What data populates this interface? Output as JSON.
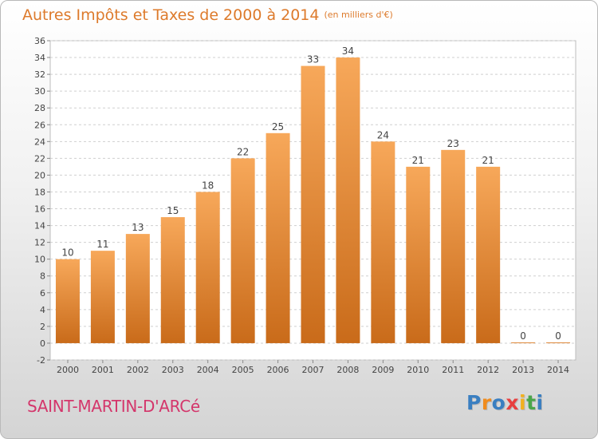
{
  "title": "Autres Impôts et Taxes de 2000 à 2014",
  "title_unit": "(en milliers d'€)",
  "town": "SAINT-MARTIN-D'ARCé",
  "logo": {
    "letters": [
      "P",
      "r",
      "o",
      "x",
      "i",
      "t",
      "i"
    ],
    "colors": [
      "#3a7fc1",
      "#f08c1e",
      "#3a7fc1",
      "#e83f3f",
      "#f2b01e",
      "#4aa64a",
      "#3a7fc1"
    ]
  },
  "colors": {
    "bar_light": "#f7a85a",
    "bar_dark": "#c96b1a",
    "label": "#444444",
    "title": "#dd7a2b",
    "town": "#d4366b"
  },
  "chart_data": {
    "type": "bar",
    "categories": [
      "2000",
      "2001",
      "2002",
      "2003",
      "2004",
      "2005",
      "2006",
      "2007",
      "2008",
      "2009",
      "2010",
      "2011",
      "2012",
      "2013",
      "2014"
    ],
    "values": [
      10,
      11,
      13,
      15,
      18,
      22,
      25,
      33,
      34,
      24,
      21,
      23,
      21,
      0,
      0
    ],
    "title": "Autres Impôts et Taxes de 2000 à 2014",
    "xlabel": "",
    "ylabel": "",
    "ylim": [
      -2,
      36
    ],
    "yticks": [
      -2,
      0,
      2,
      4,
      6,
      8,
      10,
      12,
      14,
      16,
      18,
      20,
      22,
      24,
      26,
      28,
      30,
      32,
      34,
      36
    ],
    "grid": "horizontal",
    "data_labels": true,
    "legend": "none"
  }
}
